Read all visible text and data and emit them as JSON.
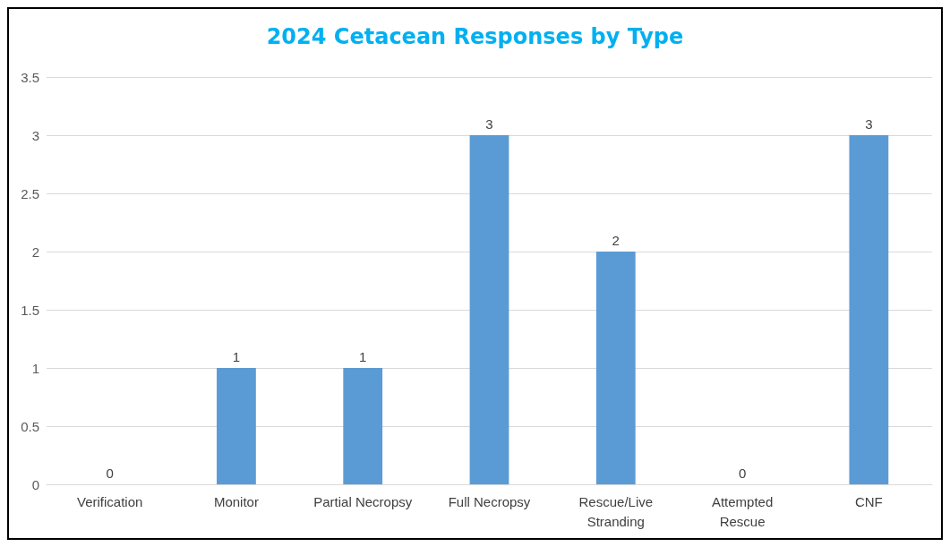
{
  "chart_data": {
    "type": "bar",
    "title": "2024 Cetacean Responses by Type",
    "categories": [
      "Verification",
      "Monitor",
      "Partial Necropsy",
      "Full Necropsy",
      "Rescue/Live\nStranding",
      "Attempted\nRescue",
      "CNF"
    ],
    "values": [
      0,
      1,
      1,
      3,
      2,
      0,
      3
    ],
    "color": "#5b9bd5",
    "ylim": [
      0,
      3.5
    ],
    "yticks": [
      0,
      0.5,
      1,
      1.5,
      2,
      2.5,
      3,
      3.5
    ],
    "grid": "y",
    "data_labels": true
  }
}
